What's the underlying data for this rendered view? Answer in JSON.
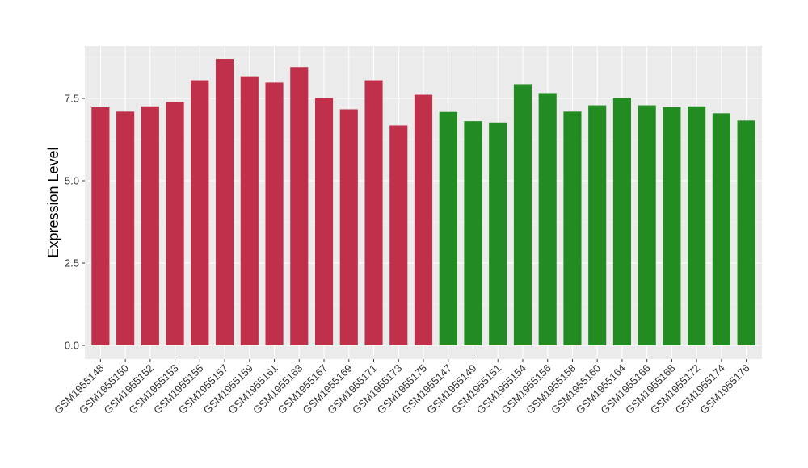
{
  "chart_data": {
    "type": "bar",
    "title": "",
    "xlabel": "",
    "ylabel": "Expression Level",
    "ylim": [
      0,
      8.7
    ],
    "y_ticks": [
      "0.0",
      "2.5",
      "5.0",
      "7.5"
    ],
    "grid": true,
    "background": "#ebebeb",
    "categories": [
      "GSM1955148",
      "GSM1955150",
      "GSM1955152",
      "GSM1955153",
      "GSM1955155",
      "GSM1955157",
      "GSM1955159",
      "GSM1955161",
      "GSM1955163",
      "GSM1955167",
      "GSM1955169",
      "GSM1955171",
      "GSM1955173",
      "GSM1955175",
      "GSM1955147",
      "GSM1955149",
      "GSM1955151",
      "GSM1955154",
      "GSM1955156",
      "GSM1955158",
      "GSM1955160",
      "GSM1955164",
      "GSM1955166",
      "GSM1955168",
      "GSM1955172",
      "GSM1955174",
      "GSM1955176"
    ],
    "values": [
      7.23,
      7.1,
      7.26,
      7.39,
      8.05,
      8.7,
      8.17,
      7.98,
      8.45,
      7.51,
      7.17,
      8.05,
      6.68,
      7.61,
      7.09,
      6.81,
      6.77,
      7.93,
      7.66,
      7.1,
      7.29,
      7.51,
      7.29,
      7.24,
      7.26,
      7.05,
      6.83
    ],
    "bar_colors": [
      "#c0304a",
      "#c0304a",
      "#c0304a",
      "#c0304a",
      "#c0304a",
      "#c0304a",
      "#c0304a",
      "#c0304a",
      "#c0304a",
      "#c0304a",
      "#c0304a",
      "#c0304a",
      "#c0304a",
      "#c0304a",
      "#228b22",
      "#228b22",
      "#228b22",
      "#228b22",
      "#228b22",
      "#228b22",
      "#228b22",
      "#228b22",
      "#228b22",
      "#228b22",
      "#228b22",
      "#228b22",
      "#228b22"
    ]
  }
}
